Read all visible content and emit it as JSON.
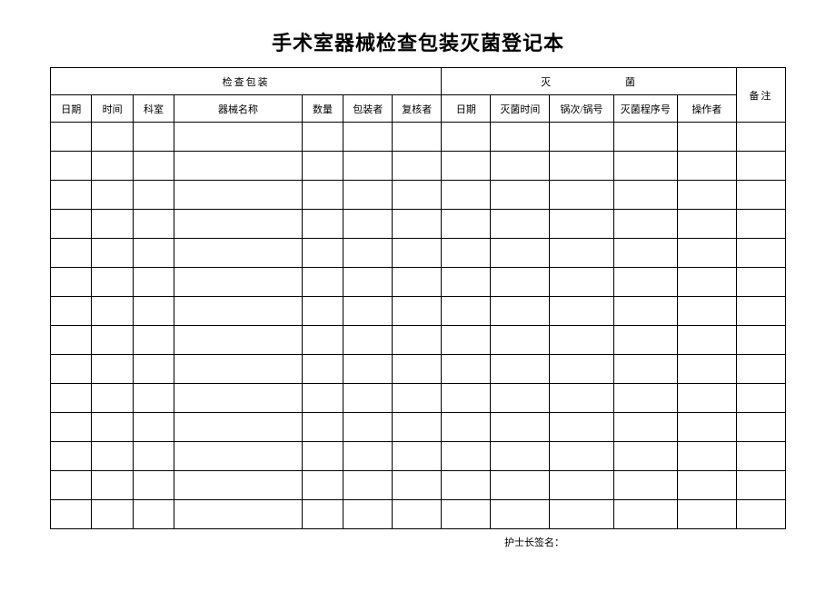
{
  "title": "手术室器械检查包装灭菌登记本",
  "groupHeaders": {
    "inspection": "检查包装",
    "sterilization": "灭　　菌",
    "remark": "备注"
  },
  "columns": {
    "date1": "日期",
    "time": "时间",
    "dept": "科室",
    "instrument": "器械名称",
    "quantity": "数量",
    "packer": "包装者",
    "reviewer": "复核者",
    "date2": "日期",
    "sterTime": "灭菌时间",
    "potBatch": "锅次/锅号",
    "sterProgram": "灭菌程序号",
    "operator": "操作者"
  },
  "footer": "护士长签名：",
  "layout": {
    "colWidths": {
      "date1": 42,
      "time": 42,
      "dept": 42,
      "instrument": 130,
      "quantity": 42,
      "packer": 50,
      "reviewer": 50,
      "date2": 50,
      "sterTime": 60,
      "potBatch": 65,
      "sterProgram": 65,
      "operator": 60,
      "remark": 50
    },
    "emptyRows": 14,
    "colors": {
      "background": "#ffffff",
      "border": "#000000",
      "text": "#000000"
    },
    "fontSizes": {
      "title": 22,
      "cell": 11,
      "footer": 11
    }
  }
}
